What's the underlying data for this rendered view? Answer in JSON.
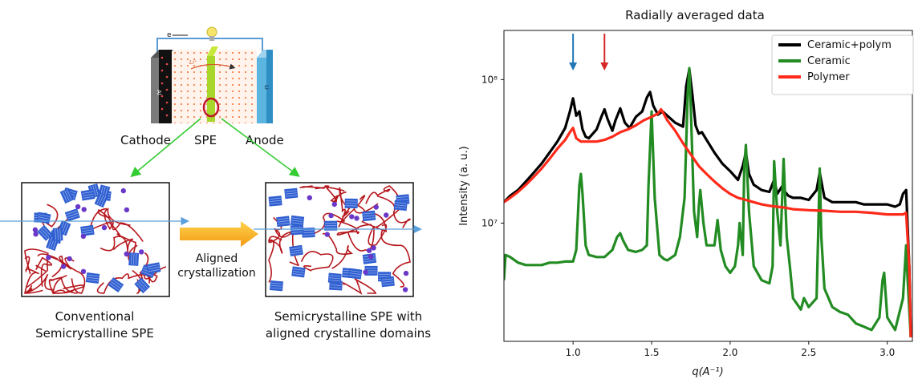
{
  "schematic": {
    "electron_label": "e",
    "li_ion_label": "Li⁺",
    "cathode_plate_label": "Al",
    "anode_plate_label": "Li",
    "cathode_label": "Cathode",
    "spe_label": "SPE",
    "anode_label": "Anode",
    "arrow_label_line1": "Aligned",
    "arrow_label_line2": "crystallization",
    "left_caption_line1": "Conventional",
    "left_caption_line2": "Semicrystalline SPE",
    "right_caption_line1": "Semicrystalline SPE with",
    "right_caption_line2": "aligned crystalline domains"
  },
  "chart_data": {
    "type": "line",
    "title": "Radially averaged data",
    "xlabel": "q(A⁻¹)",
    "ylabel": "Intensity (a. u.)",
    "x_scale": "linear",
    "y_scale": "log",
    "xlim": [
      0.56,
      3.16
    ],
    "ylim": [
      1500000,
      220000000
    ],
    "x_ticks": [
      1.0,
      1.5,
      2.0,
      2.5,
      3.0
    ],
    "x_tick_labels": [
      "1.0",
      "1.5",
      "2.0",
      "2.5",
      "3.0"
    ],
    "y_ticks": [
      10000000,
      100000000
    ],
    "y_tick_labels": [
      "10⁷",
      "10⁸"
    ],
    "grid": false,
    "legend_position": "top-right",
    "annotations": [
      {
        "type": "arrow",
        "color": "#1f77b4",
        "x": 1.0
      },
      {
        "type": "arrow",
        "color": "#d62728",
        "x": 1.2
      }
    ],
    "series": [
      {
        "name": "Ceramic+polym",
        "color": "#000000",
        "x": [
          0.56,
          0.6,
          0.65,
          0.7,
          0.75,
          0.8,
          0.85,
          0.9,
          0.95,
          0.98,
          1.0,
          1.02,
          1.04,
          1.06,
          1.08,
          1.1,
          1.15,
          1.18,
          1.2,
          1.22,
          1.25,
          1.27,
          1.3,
          1.33,
          1.36,
          1.4,
          1.44,
          1.47,
          1.49,
          1.51,
          1.54,
          1.57,
          1.6,
          1.65,
          1.7,
          1.72,
          1.74,
          1.76,
          1.78,
          1.8,
          1.82,
          1.85,
          1.9,
          1.95,
          2.0,
          2.05,
          2.08,
          2.1,
          2.12,
          2.15,
          2.2,
          2.25,
          2.28,
          2.3,
          2.33,
          2.35,
          2.37,
          2.4,
          2.45,
          2.5,
          2.55,
          2.57,
          2.6,
          2.65,
          2.7,
          2.75,
          2.8,
          2.85,
          2.9,
          2.95,
          3.0,
          3.05,
          3.08,
          3.1,
          3.12,
          3.14,
          3.15
        ],
        "y": [
          14000000,
          15500000,
          17000000,
          19500000,
          22500000,
          26000000,
          31000000,
          37000000,
          46000000,
          60000000,
          74000000,
          56000000,
          60000000,
          45000000,
          40000000,
          39000000,
          45000000,
          55000000,
          62000000,
          53000000,
          44000000,
          52000000,
          63000000,
          50000000,
          46000000,
          55000000,
          60000000,
          75000000,
          82000000,
          66000000,
          57000000,
          60000000,
          56000000,
          50000000,
          47000000,
          90000000,
          118000000,
          78000000,
          48000000,
          42000000,
          43000000,
          38000000,
          31000000,
          26000000,
          23000000,
          20000000,
          25000000,
          31000000,
          22000000,
          18500000,
          17000000,
          16500000,
          20000000,
          16000000,
          18000000,
          16500000,
          15500000,
          15000000,
          15000000,
          14500000,
          17000000,
          22500000,
          15000000,
          14000000,
          14000000,
          14000000,
          14000000,
          13500000,
          13500000,
          13500000,
          13500000,
          13000000,
          13500000,
          16000000,
          17000000,
          5000000,
          1600000
        ]
      },
      {
        "name": "Ceramic",
        "color": "#228b22",
        "x": [
          0.56,
          0.57,
          0.6,
          0.65,
          0.7,
          0.75,
          0.8,
          0.85,
          0.9,
          0.95,
          1.0,
          1.02,
          1.04,
          1.05,
          1.06,
          1.08,
          1.1,
          1.15,
          1.2,
          1.25,
          1.28,
          1.3,
          1.32,
          1.35,
          1.4,
          1.44,
          1.47,
          1.48,
          1.5,
          1.52,
          1.55,
          1.58,
          1.6,
          1.65,
          1.68,
          1.71,
          1.73,
          1.74,
          1.75,
          1.77,
          1.79,
          1.8,
          1.81,
          1.83,
          1.85,
          1.9,
          1.92,
          1.94,
          1.97,
          2.0,
          2.03,
          2.05,
          2.06,
          2.08,
          2.09,
          2.1,
          2.12,
          2.15,
          2.2,
          2.25,
          2.27,
          2.28,
          2.3,
          2.32,
          2.34,
          2.36,
          2.38,
          2.4,
          2.45,
          2.47,
          2.5,
          2.55,
          2.56,
          2.57,
          2.58,
          2.6,
          2.65,
          2.7,
          2.75,
          2.8,
          2.85,
          2.9,
          2.95,
          2.97,
          2.98,
          3.0,
          3.05,
          3.1,
          3.12,
          3.13,
          3.15
        ],
        "y": [
          4000000,
          6000000,
          5800000,
          5300000,
          5100000,
          5100000,
          5100000,
          5300000,
          5300000,
          5400000,
          5400000,
          6500000,
          18500000,
          22000000,
          16000000,
          7000000,
          6000000,
          5800000,
          5800000,
          6500000,
          8000000,
          8500000,
          7500000,
          6500000,
          6300000,
          6500000,
          7000000,
          18000000,
          60000000,
          15000000,
          6000000,
          5600000,
          5500000,
          6000000,
          8000000,
          15000000,
          80000000,
          120000000,
          60000000,
          12000000,
          8000000,
          13000000,
          17000000,
          10000000,
          7000000,
          7000000,
          10500000,
          6500000,
          5000000,
          4500000,
          5000000,
          7000000,
          10000000,
          6000000,
          25000000,
          35000000,
          12000000,
          5000000,
          4000000,
          3800000,
          5000000,
          27000000,
          12000000,
          7000000,
          28000000,
          8000000,
          5000000,
          3000000,
          2500000,
          3000000,
          2600000,
          3000000,
          8000000,
          24000000,
          8000000,
          3500000,
          2600000,
          2400000,
          2300000,
          2000000,
          1900000,
          1800000,
          2200000,
          4000000,
          4500000,
          2200000,
          1800000,
          3000000,
          7000000,
          4000000,
          1600000
        ]
      },
      {
        "name": "Polymer",
        "color": "#ff2a1a",
        "x": [
          0.56,
          0.6,
          0.65,
          0.7,
          0.75,
          0.8,
          0.85,
          0.9,
          0.95,
          0.98,
          1.0,
          1.02,
          1.05,
          1.1,
          1.15,
          1.2,
          1.25,
          1.3,
          1.35,
          1.4,
          1.45,
          1.5,
          1.54,
          1.56,
          1.58,
          1.6,
          1.65,
          1.7,
          1.75,
          1.8,
          1.85,
          1.9,
          1.95,
          2.0,
          2.05,
          2.1,
          2.15,
          2.2,
          2.25,
          2.3,
          2.35,
          2.4,
          2.5,
          2.6,
          2.7,
          2.8,
          2.9,
          3.0,
          3.05,
          3.1,
          3.12,
          3.14,
          3.15
        ],
        "y": [
          14000000,
          15000000,
          16500000,
          18500000,
          21000000,
          24000000,
          28000000,
          33000000,
          38000000,
          43000000,
          46000000,
          39000000,
          37000000,
          37000000,
          37000000,
          38000000,
          40000000,
          43000000,
          45000000,
          48000000,
          52000000,
          55000000,
          58000000,
          62000000,
          57000000,
          52000000,
          44000000,
          36000000,
          30000000,
          25000000,
          22000000,
          19500000,
          17500000,
          16000000,
          15000000,
          14500000,
          14000000,
          13500000,
          13200000,
          13000000,
          12800000,
          12500000,
          12300000,
          12200000,
          12000000,
          12000000,
          11800000,
          11500000,
          11500000,
          11500000,
          11800000,
          5000000,
          1600000
        ]
      }
    ]
  }
}
